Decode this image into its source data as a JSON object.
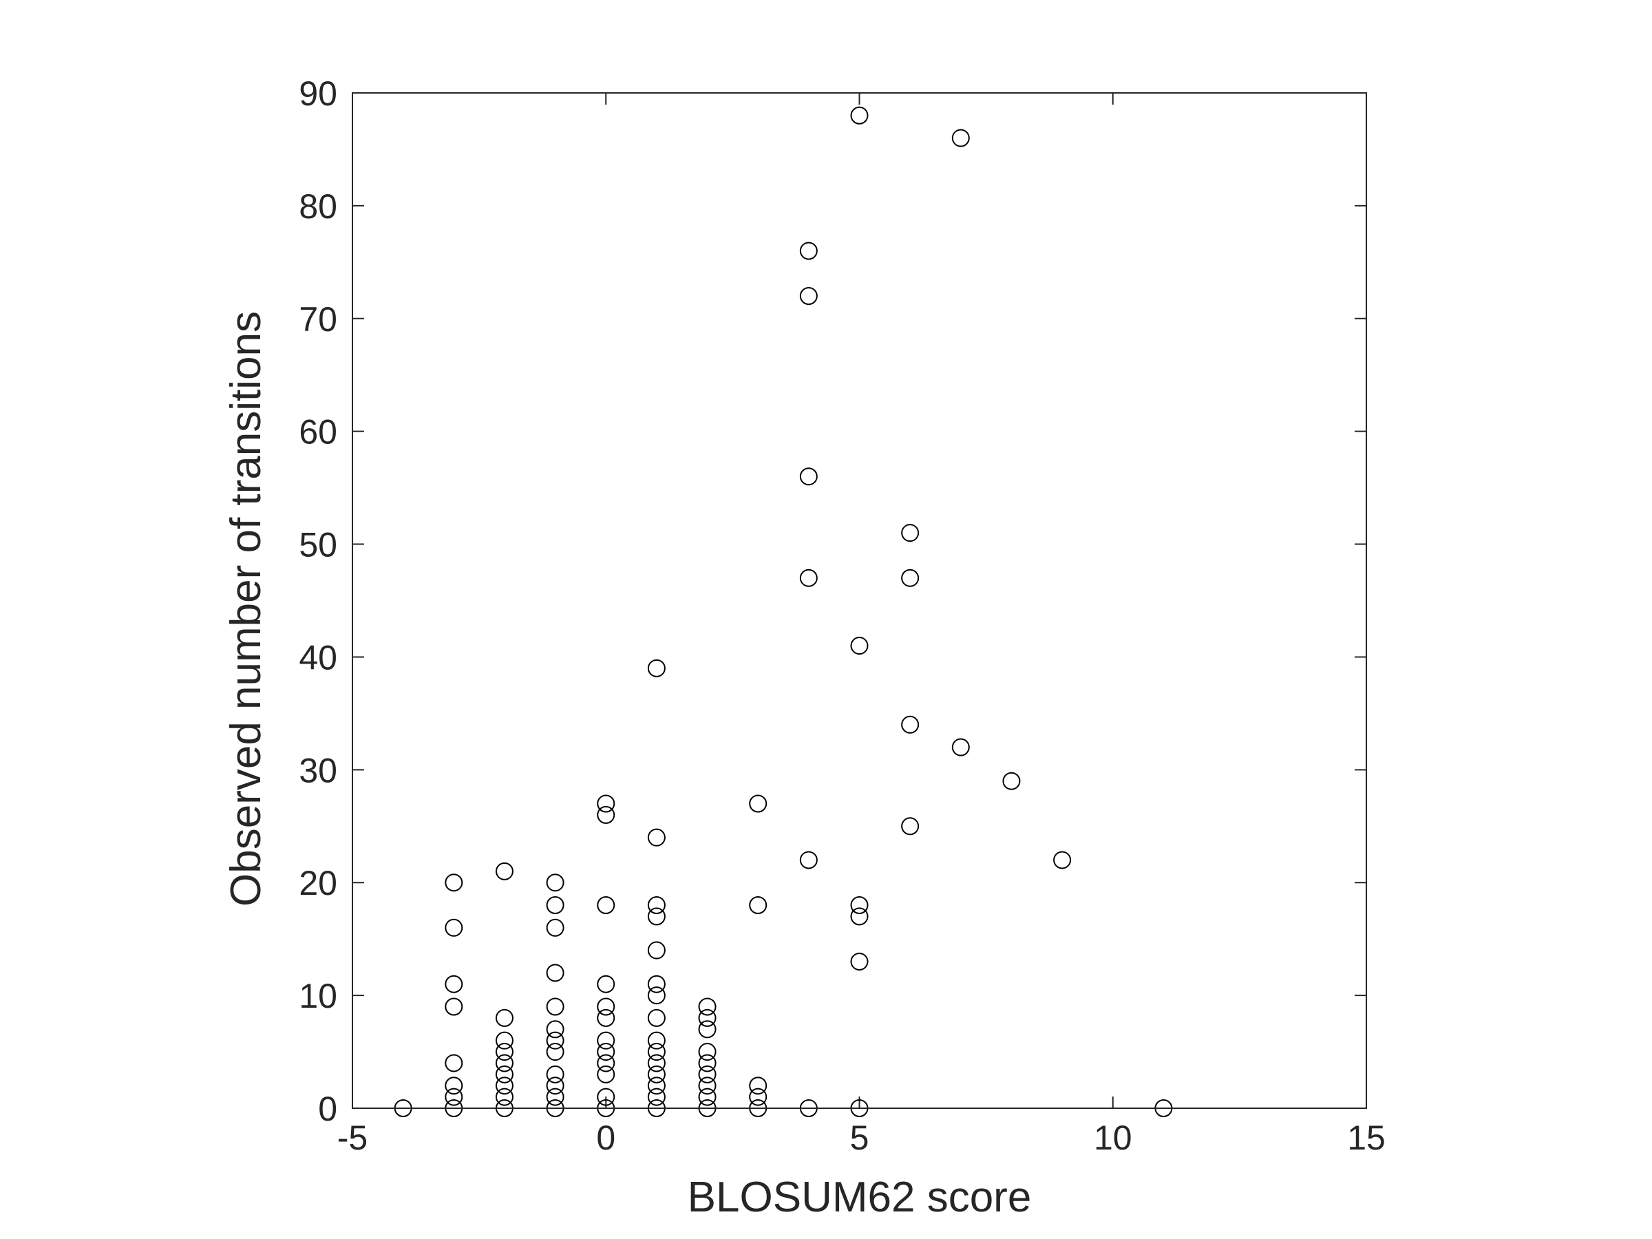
{
  "chart_data": {
    "type": "scatter",
    "title": "",
    "xlabel": "BLOSUM62 score",
    "ylabel": "Observed number of transitions",
    "xlim": [
      -5,
      15
    ],
    "ylim": [
      0,
      90
    ],
    "xticks": [
      -5,
      0,
      5,
      10,
      15
    ],
    "yticks": [
      0,
      10,
      20,
      30,
      40,
      50,
      60,
      70,
      80,
      90
    ],
    "xtick_labels": [
      "-5",
      "0",
      "5",
      "10",
      "15"
    ],
    "ytick_labels": [
      "0",
      "10",
      "20",
      "30",
      "40",
      "50",
      "60",
      "70",
      "80",
      "90"
    ],
    "grid": false,
    "legend": "none",
    "marker": "open-circle",
    "marker_color": "#000000",
    "series": [
      {
        "points": [
          [
            -4,
            0
          ],
          [
            -3,
            0
          ],
          [
            -3,
            1
          ],
          [
            -3,
            2
          ],
          [
            -3,
            4
          ],
          [
            -3,
            9
          ],
          [
            -3,
            11
          ],
          [
            -3,
            16
          ],
          [
            -3,
            20
          ],
          [
            -2,
            0
          ],
          [
            -2,
            1
          ],
          [
            -2,
            2
          ],
          [
            -2,
            3
          ],
          [
            -2,
            4
          ],
          [
            -2,
            5
          ],
          [
            -2,
            6
          ],
          [
            -2,
            8
          ],
          [
            -2,
            21
          ],
          [
            -1,
            0
          ],
          [
            -1,
            1
          ],
          [
            -1,
            2
          ],
          [
            -1,
            3
          ],
          [
            -1,
            5
          ],
          [
            -1,
            6
          ],
          [
            -1,
            7
          ],
          [
            -1,
            9
          ],
          [
            -1,
            12
          ],
          [
            -1,
            16
          ],
          [
            -1,
            18
          ],
          [
            -1,
            20
          ],
          [
            0,
            0
          ],
          [
            0,
            1
          ],
          [
            0,
            3
          ],
          [
            0,
            4
          ],
          [
            0,
            5
          ],
          [
            0,
            6
          ],
          [
            0,
            8
          ],
          [
            0,
            9
          ],
          [
            0,
            11
          ],
          [
            0,
            18
          ],
          [
            0,
            26
          ],
          [
            0,
            27
          ],
          [
            1,
            0
          ],
          [
            1,
            1
          ],
          [
            1,
            2
          ],
          [
            1,
            3
          ],
          [
            1,
            4
          ],
          [
            1,
            5
          ],
          [
            1,
            6
          ],
          [
            1,
            8
          ],
          [
            1,
            10
          ],
          [
            1,
            11
          ],
          [
            1,
            14
          ],
          [
            1,
            17
          ],
          [
            1,
            18
          ],
          [
            1,
            24
          ],
          [
            1,
            39
          ],
          [
            2,
            0
          ],
          [
            2,
            1
          ],
          [
            2,
            2
          ],
          [
            2,
            3
          ],
          [
            2,
            4
          ],
          [
            2,
            5
          ],
          [
            2,
            7
          ],
          [
            2,
            8
          ],
          [
            2,
            9
          ],
          [
            3,
            0
          ],
          [
            3,
            1
          ],
          [
            3,
            2
          ],
          [
            3,
            18
          ],
          [
            3,
            27
          ],
          [
            4,
            0
          ],
          [
            4,
            22
          ],
          [
            4,
            47
          ],
          [
            4,
            56
          ],
          [
            4,
            72
          ],
          [
            4,
            76
          ],
          [
            5,
            0
          ],
          [
            5,
            13
          ],
          [
            5,
            17
          ],
          [
            5,
            18
          ],
          [
            5,
            41
          ],
          [
            5,
            88
          ],
          [
            6,
            25
          ],
          [
            6,
            34
          ],
          [
            6,
            47
          ],
          [
            6,
            51
          ],
          [
            7,
            32
          ],
          [
            7,
            86
          ],
          [
            8,
            29
          ],
          [
            9,
            22
          ],
          [
            11,
            0
          ]
        ]
      }
    ]
  }
}
